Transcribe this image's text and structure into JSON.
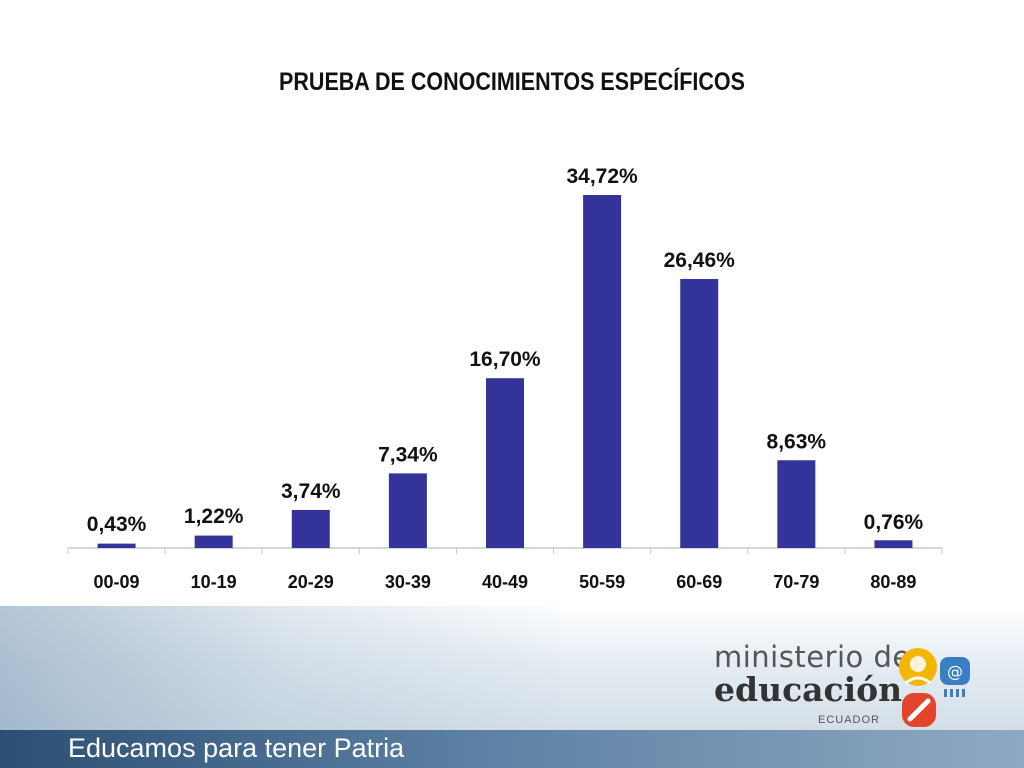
{
  "header": {
    "title": "PRUEBA DE CONOCIMIENTOS ESPECÍFICOS"
  },
  "chart_data": {
    "type": "bar",
    "title": "PRUEBA DE CONOCIMIENTOS ESPECÍFICOS",
    "categories": [
      "00-09",
      "10-19",
      "20-29",
      "30-39",
      "40-49",
      "50-59",
      "60-69",
      "70-79",
      "80-89"
    ],
    "values": [
      0.43,
      1.22,
      3.74,
      7.34,
      16.7,
      34.72,
      26.46,
      8.63,
      0.76
    ],
    "data_labels": [
      "0,43%",
      "1,22%",
      "3,74%",
      "7,34%",
      "16,70%",
      "34,72%",
      "26,46%",
      "8,63%",
      "0,76%"
    ],
    "ylim": [
      0,
      40
    ],
    "grid": false,
    "bar_color": "#333399"
  },
  "footer": {
    "slogan": "Educamos para tener Patria",
    "logo_line1": "ministerio de",
    "logo_line2": "educación",
    "logo_line3": "ECUADOR"
  }
}
